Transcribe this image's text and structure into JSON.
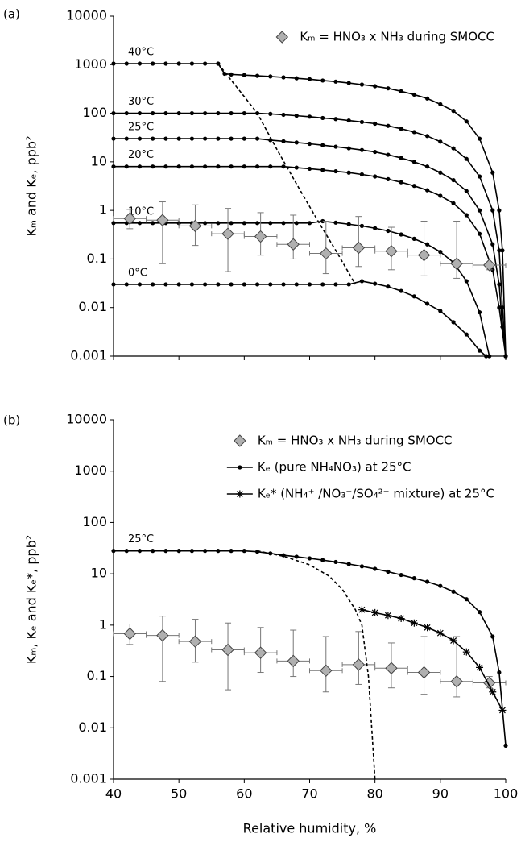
{
  "chart_data": [
    {
      "type": "line",
      "panel_label": "(a)",
      "ylabel": "Kₘ and Kₑ,  ppb²",
      "xlim": [
        40,
        100
      ],
      "xticks": [
        40,
        50,
        60,
        70,
        80,
        90,
        100
      ],
      "xtick_labels": false,
      "ylim": [
        0.001,
        10000
      ],
      "yticks": [
        0.001,
        0.01,
        0.1,
        1,
        10,
        100,
        1000,
        10000
      ],
      "log_y": true,
      "legend": "top-right",
      "series": [
        {
          "label": "40°C",
          "color": "#000000",
          "marker": "circle",
          "line": "solid",
          "x": [
            40,
            42,
            44,
            46,
            48,
            50,
            52,
            54,
            56,
            57,
            58,
            60,
            62,
            64,
            66,
            68,
            70,
            72,
            74,
            76,
            78,
            80,
            82,
            84,
            86,
            88,
            90,
            92,
            94,
            96,
            98,
            99,
            99.5,
            100
          ],
          "values": [
            1050,
            1050,
            1050,
            1050,
            1050,
            1050,
            1050,
            1050,
            1050,
            650,
            630,
            610,
            590,
            572,
            549,
            525,
            502,
            472,
            448,
            419,
            389,
            360,
            325,
            283,
            242,
            201,
            153,
            112,
            68,
            30,
            6,
            1,
            0.15,
            0.001
          ]
        },
        {
          "label": "30°C",
          "color": "#000000",
          "marker": "circle",
          "line": "solid",
          "x": [
            40,
            42,
            44,
            46,
            48,
            50,
            52,
            54,
            56,
            58,
            60,
            62,
            64,
            66,
            68,
            70,
            72,
            74,
            76,
            78,
            80,
            82,
            84,
            86,
            88,
            90,
            92,
            94,
            96,
            98,
            99,
            99.5,
            100
          ],
          "values": [
            100,
            100,
            100,
            100,
            100,
            100,
            100,
            100,
            100,
            100,
            100,
            100,
            97,
            93,
            89,
            85,
            80,
            76,
            71,
            66,
            61,
            55,
            48,
            41,
            34,
            26,
            19,
            11.5,
            5,
            1,
            0.15,
            0.01,
            0.001
          ]
        },
        {
          "label": "25°C",
          "color": "#000000",
          "marker": "circle",
          "line": "solid",
          "x": [
            40,
            42,
            44,
            46,
            48,
            50,
            52,
            54,
            56,
            58,
            60,
            62,
            64,
            66,
            68,
            70,
            72,
            74,
            76,
            78,
            80,
            82,
            84,
            86,
            88,
            90,
            92,
            94,
            96,
            98,
            99,
            99.5,
            100
          ],
          "values": [
            30,
            30,
            30,
            30,
            30,
            30,
            30,
            30,
            30,
            30,
            30,
            30,
            28,
            26.5,
            25,
            23.5,
            22,
            20.5,
            19,
            17.5,
            16,
            14,
            12,
            10,
            8,
            6,
            4.2,
            2.5,
            1,
            0.2,
            0.03,
            0.004,
            0.001
          ]
        },
        {
          "label": "20°C",
          "color": "#000000",
          "marker": "circle",
          "line": "solid",
          "x": [
            40,
            42,
            44,
            46,
            48,
            50,
            52,
            54,
            56,
            58,
            60,
            62,
            64,
            66,
            68,
            70,
            72,
            74,
            76,
            78,
            80,
            82,
            84,
            86,
            88,
            90,
            92,
            94,
            96,
            98,
            99,
            100
          ],
          "values": [
            8,
            8,
            8,
            8,
            8,
            8,
            8,
            8,
            8,
            8,
            8,
            8,
            8,
            8,
            7.6,
            7.2,
            6.8,
            6.4,
            6,
            5.5,
            5,
            4.4,
            3.8,
            3.2,
            2.6,
            2,
            1.4,
            0.8,
            0.33,
            0.06,
            0.01,
            0.001
          ]
        },
        {
          "label": "10°C",
          "color": "#000000",
          "marker": "circle",
          "line": "solid",
          "x": [
            40,
            42,
            44,
            46,
            48,
            50,
            52,
            54,
            56,
            58,
            60,
            62,
            64,
            66,
            68,
            70,
            72,
            74,
            76,
            78,
            80,
            82,
            84,
            86,
            88,
            90,
            92,
            94,
            96,
            97.5
          ],
          "values": [
            0.55,
            0.55,
            0.55,
            0.55,
            0.55,
            0.55,
            0.55,
            0.55,
            0.55,
            0.55,
            0.55,
            0.55,
            0.55,
            0.55,
            0.55,
            0.55,
            0.6,
            0.56,
            0.52,
            0.48,
            0.43,
            0.38,
            0.32,
            0.26,
            0.2,
            0.14,
            0.085,
            0.035,
            0.008,
            0.001
          ]
        },
        {
          "label": "0°C",
          "color": "#000000",
          "marker": "circle",
          "line": "solid",
          "x": [
            40,
            42,
            44,
            46,
            48,
            50,
            52,
            54,
            56,
            58,
            60,
            62,
            64,
            66,
            68,
            70,
            72,
            74,
            76,
            78,
            80,
            82,
            84,
            86,
            88,
            90,
            92,
            94,
            96,
            97
          ],
          "values": [
            0.03,
            0.03,
            0.03,
            0.03,
            0.03,
            0.03,
            0.03,
            0.03,
            0.03,
            0.03,
            0.03,
            0.03,
            0.03,
            0.03,
            0.03,
            0.03,
            0.03,
            0.03,
            0.03,
            0.035,
            0.031,
            0.027,
            0.022,
            0.017,
            0.012,
            0.0085,
            0.005,
            0.0028,
            0.0013,
            0.001
          ]
        },
        {
          "color": "#000000",
          "marker": "none",
          "line": "dashed",
          "x": [
            56,
            60,
            62,
            65,
            68,
            71,
            74,
            77
          ],
          "values": [
            1050,
            220,
            100,
            18,
            3.5,
            0.7,
            0.15,
            0.03
          ]
        },
        {
          "name": "Kₘ = HNO₃ x NH₃ during SMOCC",
          "color": "#b0b0b0",
          "marker": "diamond",
          "line": "none",
          "x_error": 2.5,
          "x": [
            42.5,
            47.5,
            52.5,
            57.5,
            62.5,
            67.5,
            72.5,
            77.5,
            82.5,
            87.5,
            92.5,
            97.5
          ],
          "values": [
            0.68,
            0.63,
            0.48,
            0.33,
            0.29,
            0.2,
            0.13,
            0.17,
            0.145,
            0.12,
            0.08,
            0.075
          ],
          "lower": [
            0.42,
            0.08,
            0.19,
            0.055,
            0.12,
            0.1,
            0.05,
            0.07,
            0.06,
            0.045,
            0.04,
            0.06
          ],
          "upper": [
            1.05,
            1.5,
            1.3,
            1.1,
            0.9,
            0.8,
            0.6,
            0.75,
            0.45,
            0.6,
            0.6,
            0.1
          ]
        }
      ]
    },
    {
      "type": "line",
      "panel_label": "(b)",
      "ylabel": "Kₘ, Kₑ and Kₑ*,  ppb²",
      "xlabel": "Relative humidity,  %",
      "xlim": [
        40,
        100
      ],
      "xticks": [
        40,
        50,
        60,
        70,
        80,
        90,
        100
      ],
      "xtick_labels": true,
      "ylim": [
        0.001,
        10000
      ],
      "yticks": [
        0.001,
        0.01,
        0.1,
        1,
        10,
        100,
        1000,
        10000
      ],
      "log_y": true,
      "legend": "top-right",
      "series": [
        {
          "name": "Kₘ = HNO₃ x NH₃ during SMOCC",
          "color": "#b0b0b0",
          "marker": "diamond",
          "line": "none",
          "x_error": 2.5,
          "x": [
            42.5,
            47.5,
            52.5,
            57.5,
            62.5,
            67.5,
            72.5,
            77.5,
            82.5,
            87.5,
            92.5,
            97.5
          ],
          "values": [
            0.68,
            0.63,
            0.48,
            0.33,
            0.29,
            0.2,
            0.13,
            0.17,
            0.145,
            0.12,
            0.08,
            0.075
          ],
          "lower": [
            0.42,
            0.08,
            0.19,
            0.055,
            0.12,
            0.1,
            0.05,
            0.07,
            0.06,
            0.045,
            0.04,
            0.06
          ],
          "upper": [
            1.05,
            1.5,
            1.3,
            1.1,
            0.9,
            0.8,
            0.6,
            0.75,
            0.45,
            0.6,
            0.6,
            0.1
          ]
        },
        {
          "name": "Kₑ (pure NH₄NO₃) at 25°C",
          "label": "25°C",
          "color": "#000000",
          "marker": "circle",
          "line": "solid",
          "x": [
            40,
            42,
            44,
            46,
            48,
            50,
            52,
            54,
            56,
            58,
            60,
            62,
            64,
            66,
            68,
            70,
            72,
            74,
            76,
            78,
            80,
            82,
            84,
            86,
            88,
            90,
            92,
            94,
            96,
            98,
            99,
            100
          ],
          "values": [
            28,
            28,
            28,
            28,
            28,
            28,
            28,
            28,
            28,
            28,
            28,
            27,
            25,
            23,
            21.5,
            20,
            18.5,
            17,
            15.5,
            14,
            12.5,
            11,
            9.5,
            8.2,
            7,
            5.8,
            4.5,
            3.2,
            1.8,
            0.6,
            0.12,
            0.0045
          ]
        },
        {
          "name": "Kₑ* (NH₄⁺ /NO₃⁻/SO₄²⁻ mixture) at 25°C",
          "color": "#000000",
          "marker": "star",
          "line": "solid",
          "x": [
            78,
            80,
            82,
            84,
            86,
            88,
            90,
            92,
            94,
            96,
            98,
            99.5
          ],
          "values": [
            2,
            1.75,
            1.55,
            1.35,
            1.1,
            0.9,
            0.7,
            0.5,
            0.3,
            0.15,
            0.05,
            0.022
          ]
        },
        {
          "color": "#000000",
          "marker": "none",
          "line": "dashed",
          "x": [
            62,
            66,
            70,
            73,
            75,
            77,
            78,
            79,
            79.5,
            80
          ],
          "values": [
            28,
            22,
            15,
            9,
            5,
            2,
            1,
            0.1,
            0.01,
            0.001
          ]
        }
      ]
    }
  ]
}
